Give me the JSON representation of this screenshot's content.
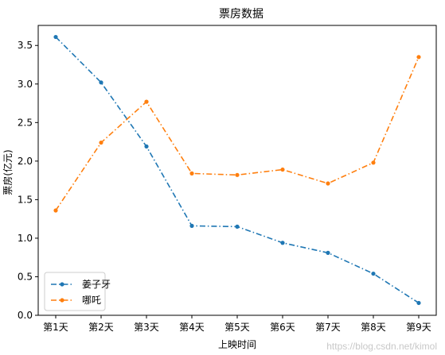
{
  "chart_data": {
    "type": "line",
    "title": "票房数据",
    "xlabel": "上映时间",
    "ylabel": "票房(亿元)",
    "categories": [
      "第1天",
      "第2天",
      "第3天",
      "第4天",
      "第5天",
      "第6天",
      "第7天",
      "第8天",
      "第9天"
    ],
    "ylim": [
      0,
      3.76
    ],
    "yticks": [
      "0.0",
      "0.5",
      "1.0",
      "1.5",
      "2.0",
      "2.5",
      "3.0",
      "3.5"
    ],
    "grid": false,
    "legend_position": "lower-left",
    "series": [
      {
        "name": "姜子牙",
        "color": "#1f77b4",
        "values": [
          3.61,
          3.02,
          2.19,
          1.16,
          1.15,
          0.94,
          0.81,
          0.54,
          0.16
        ]
      },
      {
        "name": "哪吒",
        "color": "#ff7f0e",
        "values": [
          1.36,
          2.24,
          2.77,
          1.84,
          1.82,
          1.89,
          1.71,
          1.98,
          3.35
        ]
      }
    ]
  },
  "watermark": "https://blog.csdn.net/kimol"
}
